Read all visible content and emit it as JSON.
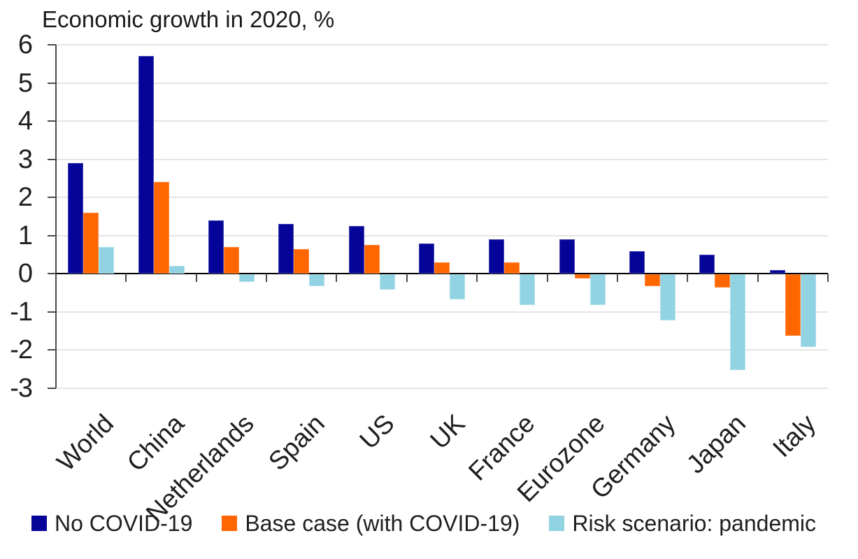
{
  "chart_data": {
    "type": "bar",
    "title": "Economic growth in 2020, %",
    "categories": [
      "World",
      "China",
      "Netherlands",
      "Spain",
      "US",
      "UK",
      "France",
      "Eurozone",
      "Germany",
      "Japan",
      "Italy"
    ],
    "series": [
      {
        "name": "No COVID-19",
        "color": "#040499",
        "border_color": "#4747b3",
        "values": [
          2.9,
          5.7,
          1.4,
          1.3,
          1.25,
          0.8,
          0.9,
          0.9,
          0.6,
          0.5,
          0.1
        ]
      },
      {
        "name": "Base case (with COVID-19)",
        "color": "#ff6600",
        "border_color": "#ff8a3c",
        "values": [
          1.6,
          2.4,
          0.7,
          0.65,
          0.75,
          0.3,
          0.3,
          -0.1,
          -0.3,
          -0.35,
          -1.6
        ]
      },
      {
        "name": "Risk scenario: pandemic",
        "color": "#92d3e3",
        "border_color": "#b3e0ec",
        "values": [
          0.7,
          0.2,
          -0.2,
          -0.3,
          -0.4,
          -0.65,
          -0.8,
          -0.8,
          -1.2,
          -2.5,
          -1.9
        ]
      }
    ],
    "ylim": [
      -3,
      6
    ],
    "yticks": [
      6,
      5,
      4,
      3,
      2,
      1,
      0,
      -1,
      -2,
      -3
    ],
    "xlabel": "",
    "ylabel": "",
    "grid": true,
    "legend_position": "bottom",
    "axis_colors": {
      "gridline": "#e5e5e5",
      "axis": "#4a4a4a",
      "zero_line": "#000000",
      "text": "#1f1f1f"
    }
  }
}
